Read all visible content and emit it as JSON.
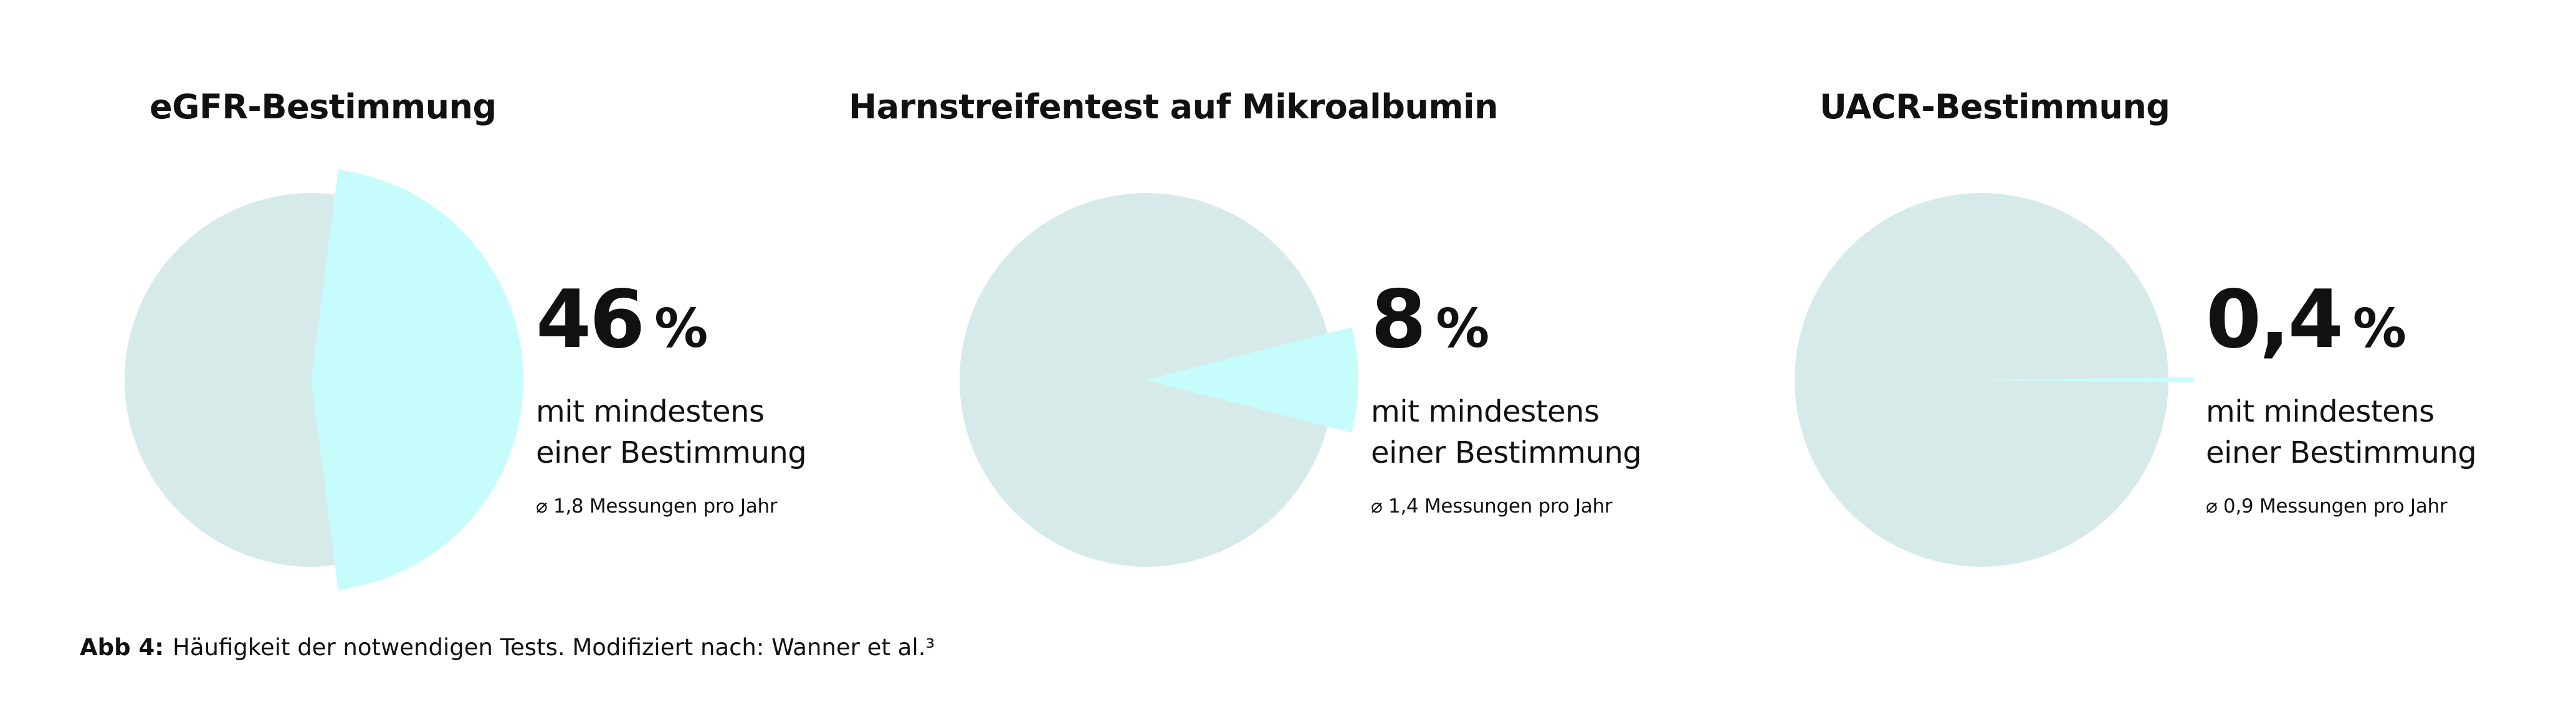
{
  "colors": {
    "background_slice": "#d7eaea",
    "highlight_slice": "#c6fcfc",
    "text": "#111111"
  },
  "chart_data": [
    {
      "type": "pie",
      "title": "eGFR-Bestimmung",
      "slices": [
        {
          "label": "mit mindestens einer Bestimmung",
          "value": 46,
          "color": "#c6fcfc",
          "exploded": true
        },
        {
          "label": "",
          "value": 54,
          "color": "#d7eaea",
          "exploded": false
        }
      ],
      "value_label": "46",
      "unit": "%",
      "description": "mit mindestens einer Bestimmung",
      "note": "⌀ 1,8 Messungen pro Jahr"
    },
    {
      "type": "pie",
      "title": "Harnstreifentest auf Mikroalbumin",
      "slices": [
        {
          "label": "mit mindestens einer Bestimmung",
          "value": 8,
          "color": "#c6fcfc",
          "exploded": true
        },
        {
          "label": "",
          "value": 92,
          "color": "#d7eaea",
          "exploded": false
        }
      ],
      "value_label": "8",
      "unit": "%",
      "description": "mit mindestens einer Bestimmung",
      "note": "⌀ 1,4 Messungen pro Jahr"
    },
    {
      "type": "pie",
      "title": "UACR-Bestimmung",
      "slices": [
        {
          "label": "mit mindestens einer Bestimmung",
          "value": 0.4,
          "color": "#c6fcfc",
          "exploded": true
        },
        {
          "label": "",
          "value": 99.6,
          "color": "#d7eaea",
          "exploded": false
        }
      ],
      "value_label": "0,4",
      "unit": "%",
      "description": "mit mindestens einer Bestimmung",
      "note": "⌀ 0,9 Messungen pro Jahr"
    }
  ],
  "caption": {
    "label": "Abb 4:",
    "text": "Häufigkeit der notwendigen Tests. Modifiziert nach: Wanner et al.³"
  }
}
